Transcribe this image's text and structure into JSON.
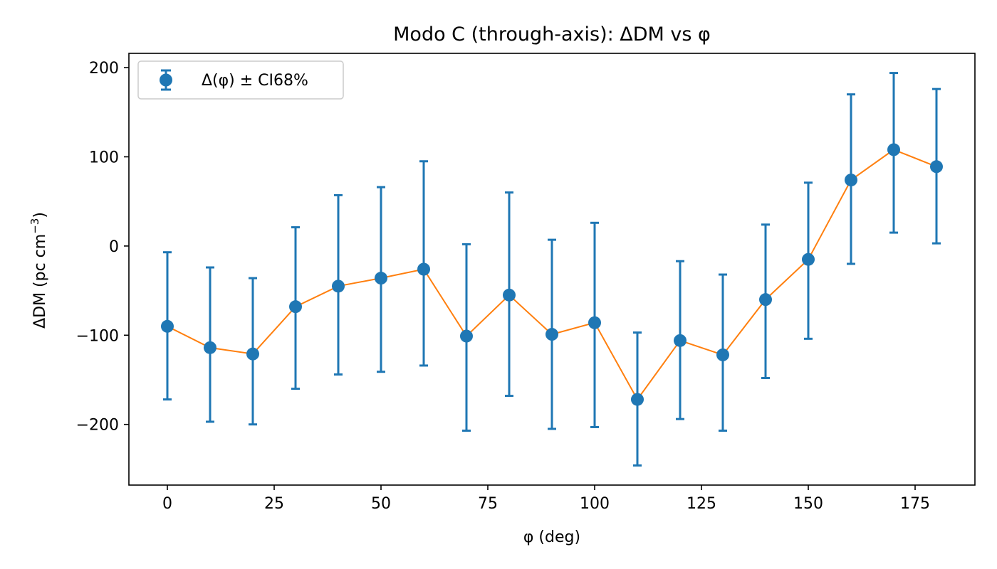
{
  "chart_data": {
    "type": "scatter",
    "title": "Modo C (through-axis): ΔDM vs φ",
    "xlabel": "φ (deg)",
    "ylabel": "ΔDM (pc cm⁻³)",
    "ylabel_base": "ΔDM (pc cm",
    "ylabel_sup": "−3",
    "ylabel_close": ")",
    "xlim": [
      -9,
      189
    ],
    "ylim": [
      -268,
      216
    ],
    "xticks": [
      0,
      25,
      50,
      75,
      100,
      125,
      150,
      175
    ],
    "yticks": [
      -200,
      -100,
      0,
      100,
      200
    ],
    "xtick_labels": [
      "0",
      "25",
      "50",
      "75",
      "100",
      "125",
      "150",
      "175"
    ],
    "ytick_labels": [
      "−200",
      "−100",
      "0",
      "100",
      "200"
    ],
    "grid": false,
    "legend": {
      "position": "top-left",
      "entries": [
        "Δ(φ) ± CI68%"
      ]
    },
    "colors": {
      "points": "#1f77b4",
      "line": "#ff7f0e"
    },
    "series": [
      {
        "name": "Δ(φ) ± CI68%",
        "x": [
          0,
          10,
          20,
          30,
          40,
          50,
          60,
          70,
          80,
          90,
          100,
          110,
          120,
          130,
          140,
          150,
          160,
          170,
          180
        ],
        "y": [
          -90,
          -114,
          -121,
          -68,
          -45,
          -36,
          -26,
          -101,
          -55,
          -99,
          -86,
          -172,
          -106,
          -122,
          -60,
          -15,
          74,
          108,
          89
        ],
        "err_low": [
          -172,
          -197,
          -200,
          -160,
          -144,
          -141,
          -134,
          -207,
          -168,
          -205,
          -203,
          -246,
          -194,
          -207,
          -148,
          -104,
          -20,
          15,
          3
        ],
        "err_high": [
          -7,
          -24,
          -36,
          21,
          57,
          66,
          95,
          2,
          60,
          7,
          26,
          -97,
          -17,
          -32,
          24,
          71,
          170,
          194,
          176
        ]
      }
    ]
  }
}
